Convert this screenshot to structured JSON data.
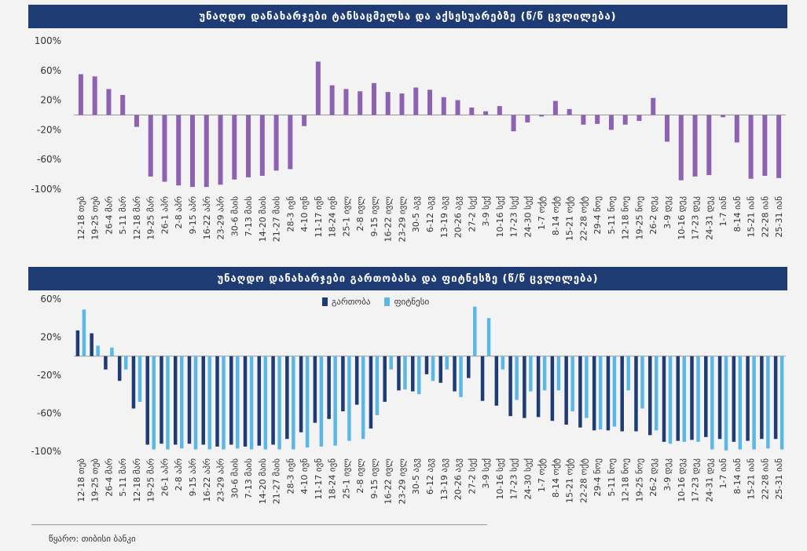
{
  "chart_data": [
    {
      "type": "bar",
      "title": "უნაღდო დანახარჯები ტანსაცმელსა და აქსესუარებზე (წ/წ ცვლილება)",
      "yticks": [
        "100%",
        "60%",
        "20%",
        "-20%",
        "-60%",
        "-100%"
      ],
      "ylim": [
        -100,
        100
      ],
      "categories": [
        "12-18 თებ",
        "19-25 თებ",
        "26-4 მარ",
        "5-11 მარ",
        "12-18 მარ",
        "19-25 მარ",
        "26-1 აპრ",
        "2-8 აპრ",
        "9-15 აპრ",
        "16-22 აპრ",
        "23-29 აპრ",
        "30-6 მაის",
        "7-13 მაის",
        "14-20 მაის",
        "21-27 მაის",
        "28-3 ივნ",
        "4-10 ივნ",
        "11-17 ივნ",
        "18-24 ივნ",
        "25-1 ივლ",
        "2-8 ივლ",
        "9-15 ივლ",
        "16-22 ივლ",
        "23-29 ივლ",
        "30-5 აგვ",
        "6-12 აგვ",
        "13-19 აგვ",
        "20-26 აგვ",
        "27-2 სექ",
        "3-9 სექ",
        "10-16 სექ",
        "17-23 სექ",
        "24-30 სექ",
        "1-7 ოქტ",
        "8-14 ოქტ",
        "15-21 ოქტ",
        "22-28 ოქტ",
        "29-4 ნოე",
        "5-11 ნოე",
        "12-18 ნოე",
        "19-25 ნოე",
        "26-2 დეკ",
        "3-9 დეკ",
        "10-16 დეკ",
        "17-23 დეკ",
        "24-31 დეკ",
        "1-7 იან",
        "8-14 იან",
        "15-21 იან",
        "22-28 იან",
        "25-31 იან"
      ],
      "series": [
        {
          "color": "#8e62b3",
          "values": [
            55,
            52,
            35,
            27,
            -16,
            -83,
            -90,
            -95,
            -97,
            -97,
            -94,
            -87,
            -84,
            -82,
            -75,
            -73,
            -15,
            72,
            40,
            35,
            32,
            43,
            31,
            29,
            37,
            34,
            24,
            20,
            10,
            5,
            12,
            -22,
            -10,
            -2,
            19,
            8,
            -13,
            -12,
            -20,
            -13,
            -8,
            23,
            -36,
            -88,
            -83,
            -81,
            -3,
            -37,
            -86,
            -82,
            -85
          ]
        }
      ]
    },
    {
      "type": "bar",
      "title": "უნაღდო დანახარჯები გართობასა და ფიტნესზე (წ/წ ცვლილება)",
      "yticks": [
        "60%",
        "20%",
        "-20%",
        "-60%",
        "-100%"
      ],
      "ylim": [
        -100,
        60
      ],
      "categories": [
        "12-18 თებ",
        "19-25 თებ",
        "26-4 მარ",
        "5-11 მარ",
        "12-18 მარ",
        "19-25 მარ",
        "26-1 აპრ",
        "2-8 აპრ",
        "9-15 აპრ",
        "16-22 აპრ",
        "23-29 აპრ",
        "30-6 მაის",
        "7-13 მაის",
        "14-20 მაის",
        "21-27 მაის",
        "28-3 ივნ",
        "4-10 ივნ",
        "11-17 ივნ",
        "18-24 ივნ",
        "25-1 ივლ",
        "2-8 ივლ",
        "9-15 ივლ",
        "16-22 ივლ",
        "23-29 ივლ",
        "30-5 აგვ",
        "6-12 აგვ",
        "13-19 აგვ",
        "20-26 აგვ",
        "27-2 სექ",
        "3-9 სექ",
        "10-16 სექ",
        "17-23 სექ",
        "24-30 სექ",
        "1-7 ოქტ",
        "8-14 ოქტ",
        "15-21 ოქტ",
        "22-28 ოქტ",
        "29-4 ნოე",
        "5-11 ნოე",
        "12-18 ნოე",
        "19-25 ნოე",
        "26-2 დეკ",
        "3-9 დეკ",
        "10-16 დეკ",
        "17-23 დეკ",
        "24-31 დეკ",
        "1-7 იან",
        "8-14 იან",
        "15-21 იან",
        "22-28 იან",
        "25-31 იან"
      ],
      "series": [
        {
          "name": "გართობა",
          "color": "#1f3b73",
          "values": [
            27,
            24,
            -14,
            -26,
            -55,
            -93,
            -92,
            -93,
            -92,
            -93,
            -95,
            -93,
            -95,
            -94,
            -93,
            -87,
            -80,
            -70,
            -66,
            -58,
            -51,
            -76,
            -48,
            -36,
            -37,
            -19,
            -28,
            -37,
            -23,
            -47,
            -52,
            -63,
            -65,
            -64,
            -68,
            -72,
            -75,
            -78,
            -78,
            -79,
            -79,
            -83,
            -90,
            -89,
            -88,
            -85,
            -87,
            -90,
            -89,
            -87,
            -87
          ]
        },
        {
          "name": "ფიტნესი",
          "color": "#5bb8e6",
          "values": [
            49,
            11,
            9,
            -14,
            -48,
            -98,
            -98,
            -97,
            -98,
            -98,
            -98,
            -97,
            -98,
            -98,
            -98,
            -98,
            -96,
            -95,
            -94,
            -89,
            -87,
            -62,
            -14,
            -35,
            -40,
            -26,
            -14,
            -43,
            52,
            40,
            -14,
            -46,
            -37,
            -36,
            -36,
            -58,
            -65,
            -77,
            -74,
            -36,
            -55,
            -78,
            -92,
            -90,
            -90,
            -98,
            -99,
            -98,
            -98,
            -97,
            -98
          ]
        }
      ]
    }
  ],
  "source": "წყარო: თიბისი ბანკი"
}
